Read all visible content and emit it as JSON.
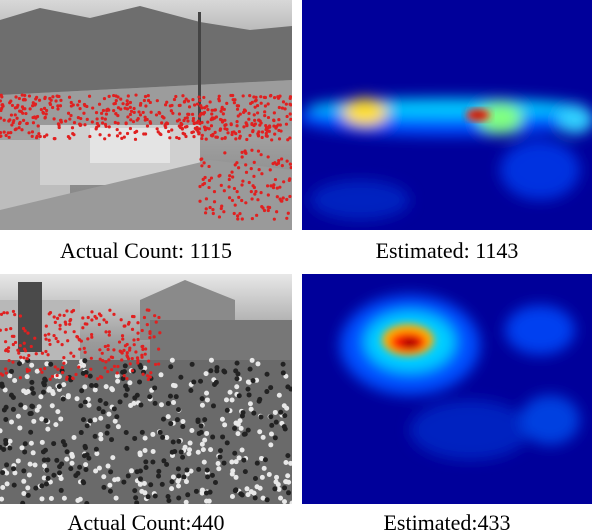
{
  "figure": {
    "rows": [
      {
        "actual": "Actual Count: 1115",
        "estimated": "Estimated: 1143"
      },
      {
        "actual": "Actual Count:440",
        "estimated": "Estimated:433"
      }
    ]
  }
}
